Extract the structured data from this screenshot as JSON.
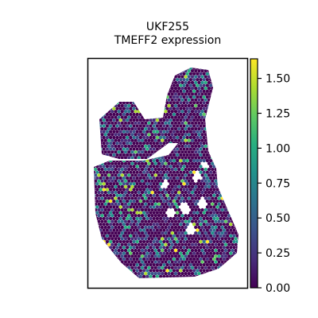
{
  "chart_data": {
    "type": "scatter",
    "title_lines": [
      "UKF255",
      "TMEFF2 expression"
    ],
    "xlabel": "",
    "ylabel": "",
    "colorbar": {
      "colormap": "viridis",
      "range": [
        0.0,
        1.64
      ],
      "ticks": [
        0.0,
        0.25,
        0.5,
        0.75,
        1.0,
        1.25,
        1.5
      ],
      "tick_labels": [
        "0.00",
        "0.25",
        "0.50",
        "0.75",
        "1.00",
        "1.25",
        "1.50"
      ]
    },
    "grid": false,
    "legend": "none"
  }
}
